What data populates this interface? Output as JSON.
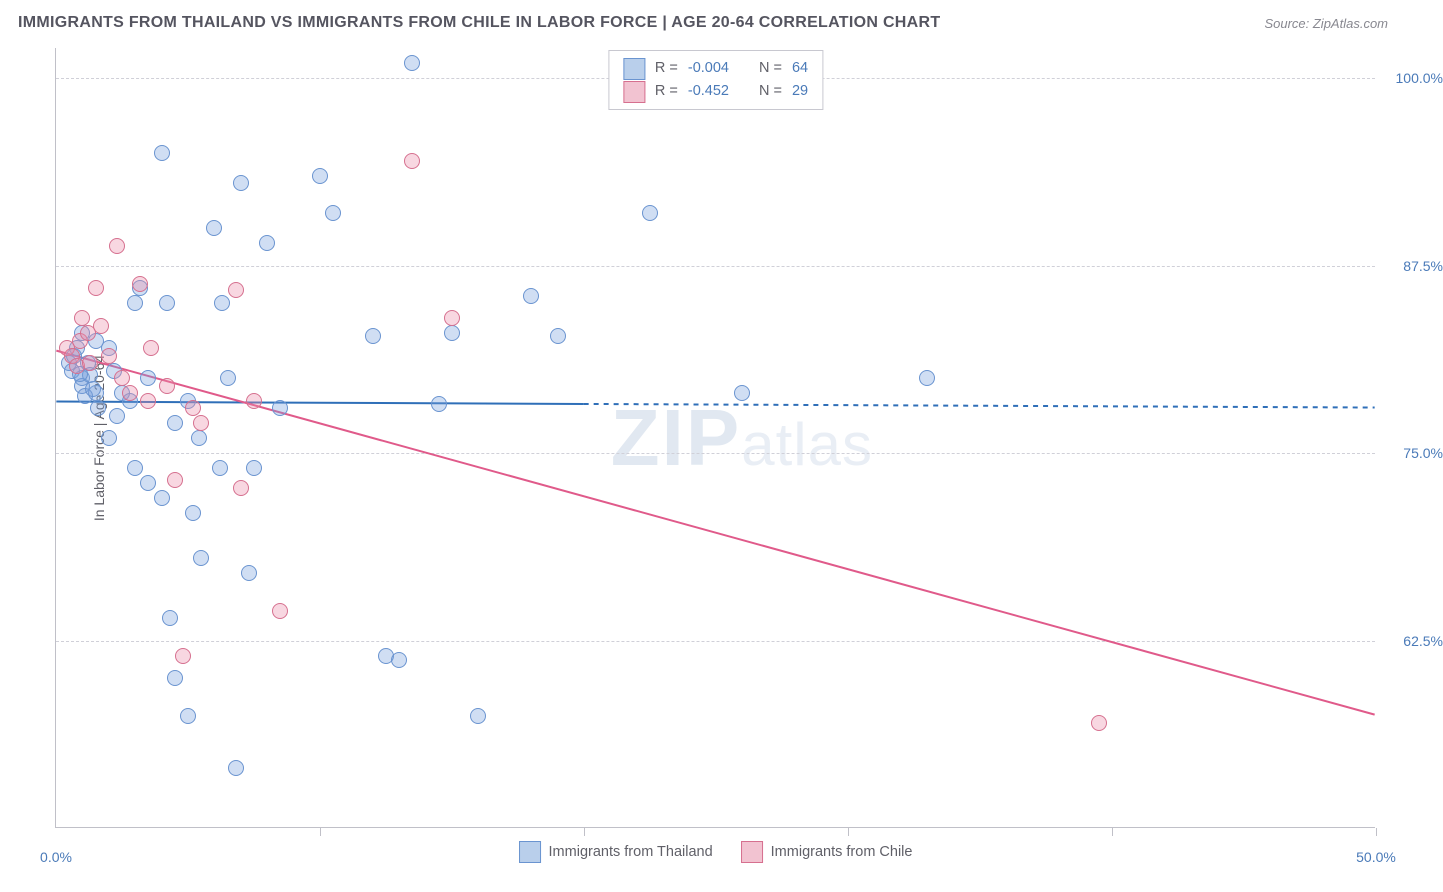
{
  "title": "IMMIGRANTS FROM THAILAND VS IMMIGRANTS FROM CHILE IN LABOR FORCE | AGE 20-64 CORRELATION CHART",
  "source": "Source: ZipAtlas.com",
  "y_axis_title": "In Labor Force | Age 20-64",
  "watermark_bold": "ZIP",
  "watermark_light": "atlas",
  "chart": {
    "type": "scatter+trend",
    "background_color": "#ffffff",
    "grid_color": "#d0d0d8",
    "axis_color": "#c0c0c8",
    "label_color": "#4a7ab8",
    "title_color": "#555560",
    "title_fontsize": 16,
    "label_fontsize": 14,
    "xlim": [
      0,
      50
    ],
    "ylim": [
      50,
      102
    ],
    "x_ticks": [
      0,
      10,
      20,
      30,
      40,
      50
    ],
    "x_tick_labels": [
      "0.0%",
      "",
      "",
      "",
      "",
      "50.0%"
    ],
    "y_ticks": [
      62.5,
      75.0,
      87.5,
      100.0
    ],
    "y_tick_labels": [
      "62.5%",
      "75.0%",
      "87.5%",
      "100.0%"
    ],
    "marker_radius": 8,
    "marker_stroke_width": 1.2,
    "trend_line_width": 2,
    "series": [
      {
        "name": "Immigrants from Thailand",
        "fill_color": "rgba(120,160,220,0.35)",
        "stroke_color": "#6a94d0",
        "swatch_fill": "#b9cfeb",
        "swatch_border": "#6a94d0",
        "line_color": "#2f6fb8",
        "line_dash": "5,5",
        "R": "-0.004",
        "N": "64",
        "trend": {
          "x1": 0,
          "y1": 78.4,
          "x2": 50,
          "y2": 78.0
        },
        "trend_solid_until_x": 20,
        "points": [
          [
            0.5,
            81
          ],
          [
            0.6,
            80.5
          ],
          [
            0.8,
            82
          ],
          [
            0.7,
            81.5
          ],
          [
            1.0,
            80
          ],
          [
            1.2,
            81
          ],
          [
            1.0,
            79.5
          ],
          [
            1.3,
            80.2
          ],
          [
            1.5,
            79
          ],
          [
            0.9,
            80.3
          ],
          [
            1.1,
            78.8
          ],
          [
            1.4,
            79.3
          ],
          [
            1.6,
            78
          ],
          [
            1.0,
            83
          ],
          [
            1.5,
            82.5
          ],
          [
            2.0,
            82
          ],
          [
            2.2,
            80.5
          ],
          [
            2.5,
            79
          ],
          [
            2.3,
            77.5
          ],
          [
            2.0,
            76
          ],
          [
            2.8,
            78.5
          ],
          [
            3.0,
            85
          ],
          [
            3.2,
            86
          ],
          [
            3.5,
            80
          ],
          [
            3.0,
            74
          ],
          [
            3.5,
            73
          ],
          [
            4.0,
            95
          ],
          [
            4.2,
            85
          ],
          [
            4.5,
            77
          ],
          [
            4.0,
            72
          ],
          [
            4.3,
            64
          ],
          [
            4.5,
            60
          ],
          [
            5.0,
            78.5
          ],
          [
            5.4,
            76
          ],
          [
            5.2,
            71
          ],
          [
            5.5,
            68
          ],
          [
            5.0,
            57.5
          ],
          [
            6.0,
            90
          ],
          [
            6.5,
            80
          ],
          [
            6.3,
            85
          ],
          [
            6.2,
            74
          ],
          [
            6.8,
            54
          ],
          [
            7.0,
            93
          ],
          [
            7.5,
            74
          ],
          [
            7.3,
            67
          ],
          [
            8.0,
            89
          ],
          [
            8.5,
            78
          ],
          [
            10.0,
            93.5
          ],
          [
            10.5,
            91
          ],
          [
            12.0,
            82.8
          ],
          [
            12.5,
            61.5
          ],
          [
            13.0,
            61.2
          ],
          [
            13.5,
            101
          ],
          [
            15.0,
            83
          ],
          [
            14.5,
            78.3
          ],
          [
            16.0,
            57.5
          ],
          [
            18.0,
            85.5
          ],
          [
            19.0,
            82.8
          ],
          [
            22.5,
            91
          ],
          [
            26.0,
            79
          ],
          [
            33.0,
            80
          ]
        ]
      },
      {
        "name": "Immigrants from Chile",
        "fill_color": "rgba(235,140,170,0.35)",
        "stroke_color": "#d6708f",
        "swatch_fill": "#f2c3d1",
        "swatch_border": "#d6708f",
        "line_color": "#e05a8a",
        "line_dash": "",
        "R": "-0.452",
        "N": "29",
        "trend": {
          "x1": 0,
          "y1": 81.8,
          "x2": 50,
          "y2": 57.5
        },
        "trend_solid_until_x": 50,
        "points": [
          [
            0.4,
            82
          ],
          [
            0.6,
            81.5
          ],
          [
            0.9,
            82.5
          ],
          [
            1.2,
            83
          ],
          [
            0.8,
            80.8
          ],
          [
            1.3,
            81
          ],
          [
            1.0,
            84
          ],
          [
            1.5,
            86
          ],
          [
            1.7,
            83.5
          ],
          [
            2.0,
            81.5
          ],
          [
            2.3,
            88.8
          ],
          [
            2.5,
            80
          ],
          [
            2.8,
            79
          ],
          [
            3.2,
            86.3
          ],
          [
            3.5,
            78.5
          ],
          [
            3.6,
            82
          ],
          [
            4.2,
            79.5
          ],
          [
            4.5,
            73.2
          ],
          [
            4.8,
            61.5
          ],
          [
            5.2,
            78
          ],
          [
            5.5,
            77
          ],
          [
            6.8,
            85.9
          ],
          [
            7.0,
            72.7
          ],
          [
            7.5,
            78.5
          ],
          [
            8.5,
            64.5
          ],
          [
            13.5,
            94.5
          ],
          [
            15.0,
            84
          ],
          [
            39.5,
            57
          ]
        ]
      }
    ]
  },
  "legend_top_labels": {
    "R": "R =",
    "N": "N ="
  },
  "legend_bottom": [
    {
      "color_key": 0
    },
    {
      "color_key": 1
    }
  ]
}
